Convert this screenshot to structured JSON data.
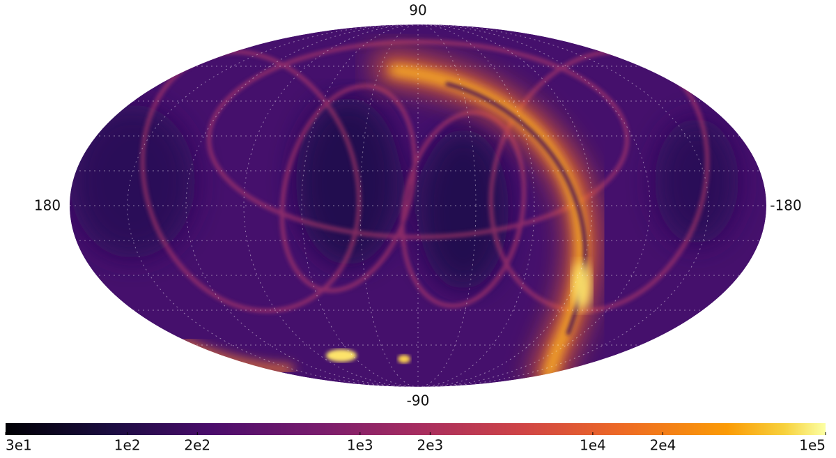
{
  "map": {
    "labels": {
      "top": "90",
      "bottom": "-90",
      "left": "180",
      "right": "-180"
    }
  },
  "colorbar": {
    "scale": "log",
    "colormap": "inferno",
    "lim": [
      30,
      100000
    ],
    "ticks": [
      {
        "value": 30,
        "label": "3e1"
      },
      {
        "value": 100,
        "label": "1e2"
      },
      {
        "value": 200,
        "label": "2e2"
      },
      {
        "value": 1000,
        "label": "1e3"
      },
      {
        "value": 2000,
        "label": "2e3"
      },
      {
        "value": 10000,
        "label": "1e4"
      },
      {
        "value": 20000,
        "label": "2e4"
      },
      {
        "value": 100000,
        "label": "1e5"
      }
    ]
  }
}
